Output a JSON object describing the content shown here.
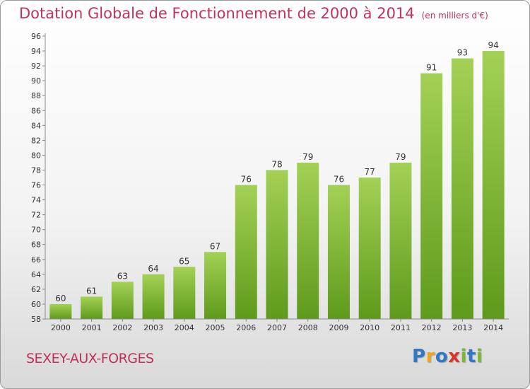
{
  "chart_data": {
    "type": "bar",
    "title": "Dotation Globale de Fonctionnement de 2000 à 2014",
    "unit": "(en milliers d'€)",
    "categories": [
      "2000",
      "2001",
      "2002",
      "2003",
      "2004",
      "2005",
      "2006",
      "2007",
      "2008",
      "2009",
      "2010",
      "2011",
      "2012",
      "2013",
      "2014"
    ],
    "values": [
      60,
      61,
      63,
      64,
      65,
      67,
      76,
      78,
      79,
      76,
      77,
      79,
      91,
      93,
      94
    ],
    "ylim": [
      58,
      96
    ],
    "ytick_step": 2,
    "grid": false,
    "bar_color": "#7db833"
  },
  "commune": "SEXEY-AUX-FORGES",
  "logo": {
    "text": "Proxiti",
    "letters": [
      {
        "ch": "P",
        "color": "#2f78c4"
      },
      {
        "ch": "r",
        "color": "#f2a51a"
      },
      {
        "ch": "o",
        "color": "#2f78c4"
      },
      {
        "ch": "x",
        "color": "#d9362b"
      },
      {
        "ch": "i",
        "color": "#7ab733"
      },
      {
        "ch": "t",
        "color": "#2f78c4"
      },
      {
        "ch": "i",
        "color": "#7ab733"
      }
    ]
  }
}
